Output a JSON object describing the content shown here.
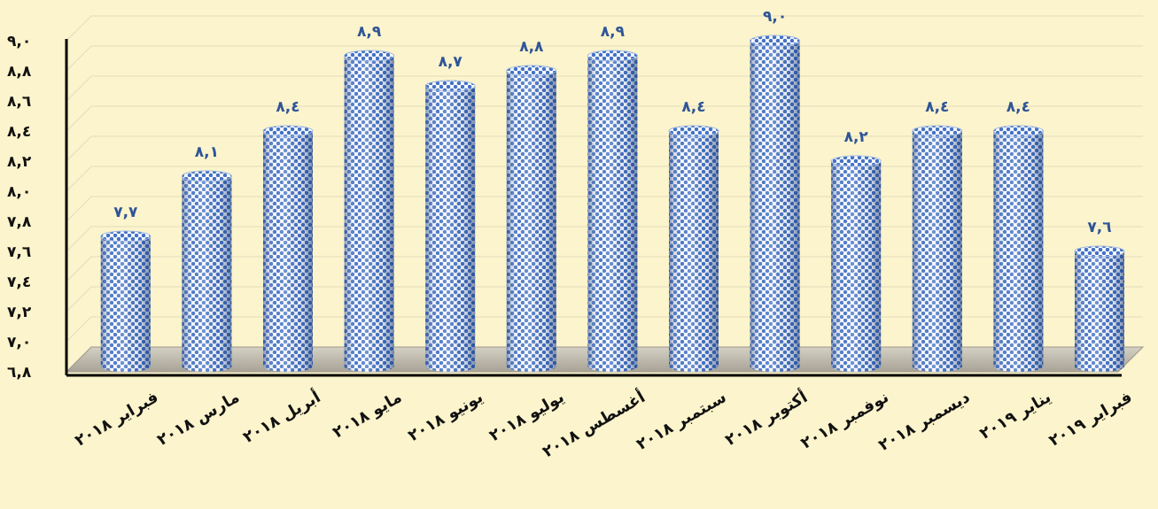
{
  "chart_data": {
    "type": "bar",
    "categories": [
      "فبراير ٢٠١٨",
      "مارس ٢٠١٨",
      "أبريل ٢٠١٨",
      "مايو ٢٠١٨",
      "يونيو ٢٠١٨",
      "يوليو ٢٠١٨",
      "أغسطس ٢٠١٨",
      "سبتمبر ٢٠١٨",
      "أكتوبر ٢٠١٨",
      "نوفمبر ٢٠١٨",
      "ديسمبر ٢٠١٨",
      "يناير ٢٠١٩",
      "فبراير ٢٠١٩"
    ],
    "values": [
      7.7,
      8.1,
      8.4,
      8.9,
      8.7,
      8.8,
      8.9,
      8.4,
      9.0,
      8.2,
      8.4,
      8.4,
      7.6
    ],
    "value_labels": [
      "٧,٧",
      "٨,١",
      "٨,٤",
      "٨,٩",
      "٨,٧",
      "٨,٨",
      "٨,٩",
      "٨,٤",
      "٩,٠",
      "٨,٢",
      "٨,٤",
      "٨,٤",
      "٧,٦"
    ],
    "y_ticks": [
      6.8,
      7.0,
      7.2,
      7.4,
      7.6,
      7.8,
      8.0,
      8.2,
      8.4,
      8.6,
      8.8,
      9.0
    ],
    "y_tick_labels": [
      "٦,٨",
      "٧,٠",
      "٧,٢",
      "٧,٤",
      "٧,٦",
      "٧,٨",
      "٨,٠",
      "٨,٢",
      "٨,٤",
      "٨,٦",
      "٨,٨",
      "٩,٠"
    ],
    "ylim": [
      6.8,
      9.0
    ],
    "grid": true,
    "colors": {
      "background": "#fcf4cc",
      "bar_light": "#ffffff",
      "bar_pattern": "#4472c4",
      "bar_dark": "#1f3f7a",
      "label": "#2f5597",
      "floor": "#bdb9ad",
      "axis": "#000000"
    }
  }
}
